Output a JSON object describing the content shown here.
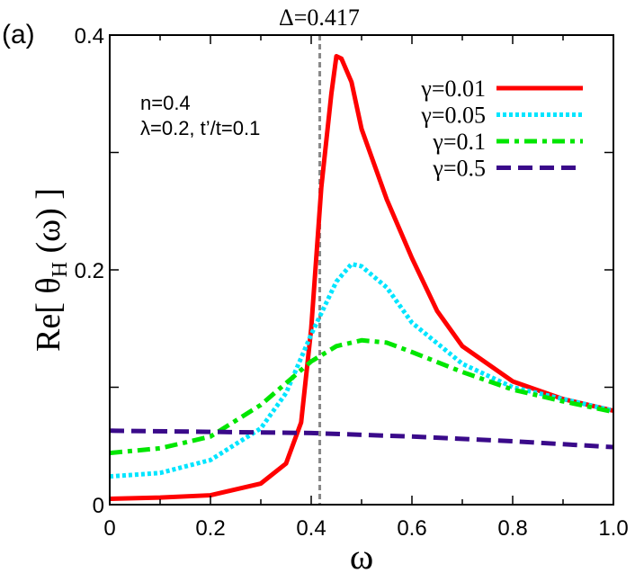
{
  "chart_data": {
    "type": "line",
    "panel_label": "(a)",
    "xlabel": "ω",
    "ylabel": "Re[ θH (ω) ]",
    "ylabel_parts": {
      "pre": "Re[ θ",
      "sub": "H",
      "post": " (ω) ]"
    },
    "xlim": [
      0,
      1.0
    ],
    "ylim": [
      0,
      0.4
    ],
    "xticks": [
      0,
      0.2,
      0.4,
      0.6,
      0.8,
      1.0
    ],
    "xtick_labels": [
      "0",
      "0.2",
      "0.4",
      "0.6",
      "0.8",
      "1.0"
    ],
    "yticks": [
      0,
      0.2,
      0.4
    ],
    "ytick_labels": [
      "0",
      "0.2",
      "0.4"
    ],
    "grid": false,
    "legend_placement": "top-right",
    "annotations": {
      "delta_label": "Δ=0.417",
      "delta_value": 0.417,
      "params_line1": "n=0.4",
      "params_line2": "λ=0.2, t’/t=0.1"
    },
    "series": [
      {
        "name": "γ=0.01",
        "color": "#ff0000",
        "style": "solid",
        "x": [
          0,
          0.1,
          0.2,
          0.3,
          0.35,
          0.38,
          0.4,
          0.42,
          0.44,
          0.45,
          0.46,
          0.48,
          0.5,
          0.55,
          0.6,
          0.65,
          0.7,
          0.8,
          0.9,
          1.0
        ],
        "y": [
          0.005,
          0.006,
          0.008,
          0.018,
          0.035,
          0.07,
          0.15,
          0.27,
          0.35,
          0.382,
          0.38,
          0.36,
          0.32,
          0.26,
          0.21,
          0.165,
          0.135,
          0.105,
          0.09,
          0.08
        ]
      },
      {
        "name": "γ=0.05",
        "color": "#00e5ff",
        "style": "dotted",
        "x": [
          0,
          0.1,
          0.2,
          0.3,
          0.35,
          0.4,
          0.45,
          0.48,
          0.5,
          0.55,
          0.6,
          0.7,
          0.8,
          0.9,
          1.0
        ],
        "y": [
          0.024,
          0.027,
          0.038,
          0.065,
          0.095,
          0.145,
          0.19,
          0.205,
          0.203,
          0.185,
          0.155,
          0.12,
          0.1,
          0.09,
          0.08
        ]
      },
      {
        "name": "γ=0.1",
        "color": "#00e600",
        "style": "dashdot",
        "x": [
          0,
          0.1,
          0.2,
          0.3,
          0.4,
          0.45,
          0.5,
          0.55,
          0.6,
          0.7,
          0.8,
          0.9,
          1.0
        ],
        "y": [
          0.044,
          0.048,
          0.058,
          0.085,
          0.122,
          0.135,
          0.14,
          0.138,
          0.13,
          0.113,
          0.098,
          0.088,
          0.079
        ]
      },
      {
        "name": "γ=0.5",
        "color": "#3a0a8a",
        "style": "dashed",
        "x": [
          0,
          0.2,
          0.4,
          0.6,
          0.8,
          1.0
        ],
        "y": [
          0.063,
          0.062,
          0.061,
          0.058,
          0.054,
          0.049
        ]
      }
    ]
  }
}
